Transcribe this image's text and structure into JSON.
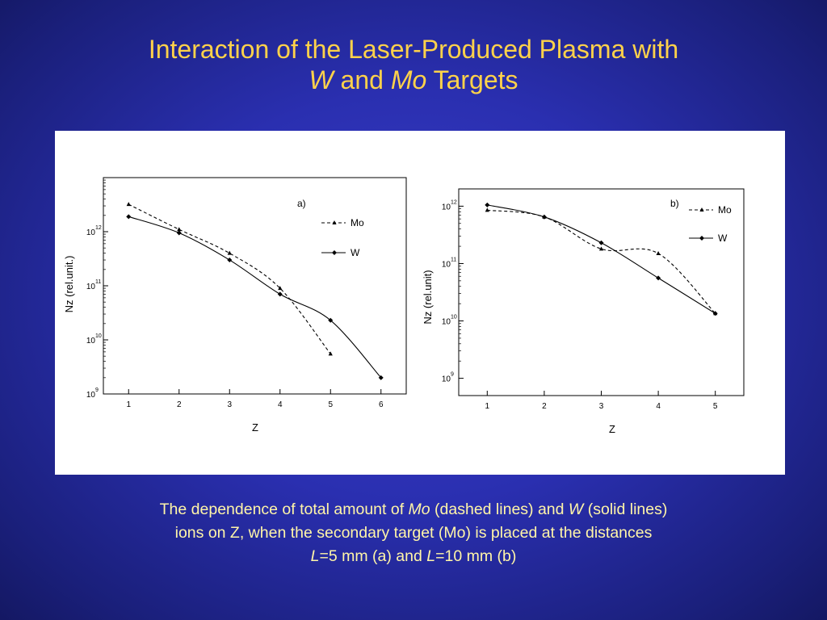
{
  "title": {
    "line1": "Interaction of the Laser-Produced Plasma with",
    "line2_a": "W",
    "line2_b": " and ",
    "line2_c": "Mo",
    "line2_d": " Targets"
  },
  "caption": {
    "p1": "The dependence of total amount of ",
    "p1_mo": "Mo",
    "p2": " (dashed lines) and ",
    "p2_w": "W",
    "p3": " (solid lines)",
    "line2": "ions on Z, when the secondary target (Mo) is placed at the distances",
    "l1": "L",
    "l1_val": "=5 mm (a) and ",
    "l2": "L",
    "l2_val": "=10 mm (b)"
  },
  "chart_data": [
    {
      "type": "line",
      "panel_label": "a)",
      "xlabel": "Z",
      "ylabel": "Nz (rel.unit.)",
      "yscale": "log",
      "xlim": [
        0.5,
        6.5
      ],
      "ylim": [
        1000000000.0,
        10000000000000.0
      ],
      "xticks": [
        "1",
        "2",
        "3",
        "4",
        "5",
        "6"
      ],
      "yticks": [
        {
          "base": "10",
          "exp": "9",
          "value": 1000000000.0
        },
        {
          "base": "10",
          "exp": "10",
          "value": 10000000000.0
        },
        {
          "base": "10",
          "exp": "11",
          "value": 100000000000.0
        },
        {
          "base": "10",
          "exp": "12",
          "value": 1000000000000.0
        }
      ],
      "legend_position": "top-right",
      "series": [
        {
          "name": "Mo",
          "style": "dashed",
          "x": [
            1,
            2,
            3,
            4,
            5
          ],
          "y": [
            3200000000000.0,
            1100000000000.0,
            400000000000.0,
            90000000000.0,
            5500000000.0
          ]
        },
        {
          "name": "W",
          "style": "solid",
          "x": [
            1,
            2,
            3,
            4,
            5,
            6
          ],
          "y": [
            1900000000000.0,
            950000000000.0,
            300000000000.0,
            70000000000.0,
            23000000000.0,
            2000000000.0
          ]
        }
      ]
    },
    {
      "type": "line",
      "panel_label": "b)",
      "xlabel": "Z",
      "ylabel": "Nz (rel.unit)",
      "yscale": "log",
      "xlim": [
        0.5,
        5.5
      ],
      "ylim": [
        500000000.0,
        2000000000000.0
      ],
      "xticks": [
        "1",
        "2",
        "3",
        "4",
        "5"
      ],
      "yticks": [
        {
          "base": "10",
          "exp": "9",
          "value": 1000000000.0
        },
        {
          "base": "10",
          "exp": "10",
          "value": 10000000000.0
        },
        {
          "base": "10",
          "exp": "11",
          "value": 100000000000.0
        },
        {
          "base": "10",
          "exp": "12",
          "value": 1000000000000.0
        }
      ],
      "legend_position": "top-right",
      "series": [
        {
          "name": "Mo",
          "style": "dashed",
          "x": [
            1,
            2,
            3,
            4,
            5
          ],
          "y": [
            850000000000.0,
            650000000000.0,
            180000000000.0,
            150000000000.0,
            13500000000.0
          ]
        },
        {
          "name": "W",
          "style": "solid",
          "x": [
            1,
            2,
            3,
            4,
            5
          ],
          "y": [
            1050000000000.0,
            650000000000.0,
            230000000000.0,
            56000000000.0,
            13500000000.0
          ]
        }
      ]
    }
  ]
}
